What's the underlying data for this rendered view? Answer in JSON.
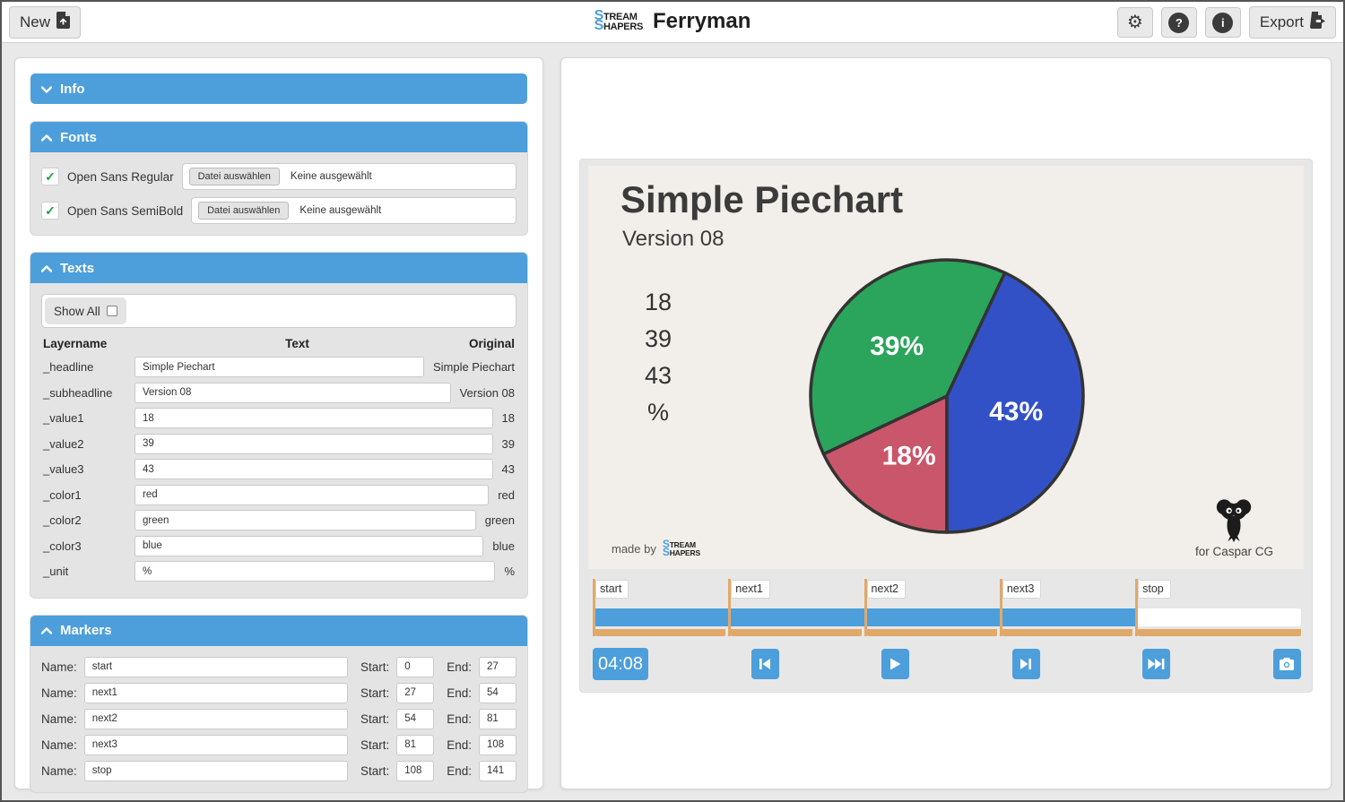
{
  "colors": {
    "accent_blue": "#4d9fdb",
    "timeline_orange": "#e0a96a",
    "preview_background": "#f2eee9",
    "section_body_gray": "#e4e4e4",
    "check_green": "#1e9e3e"
  },
  "header": {
    "new_label": "New",
    "app_title": "Ferryman",
    "logo": {
      "line1_s": "S",
      "line1_rest": "TREAM",
      "line2_s": "S",
      "line2_rest": "HAPERS"
    },
    "help_glyph": "?",
    "info_glyph": "i",
    "export_label": "Export"
  },
  "sections": {
    "info": {
      "title": "Info"
    },
    "fonts": {
      "title": "Fonts",
      "items": [
        {
          "name": "Open Sans Regular",
          "check": "✓",
          "button": "Datei auswählen",
          "status": "Keine ausgewählt"
        },
        {
          "name": "Open Sans SemiBold",
          "check": "✓",
          "button": "Datei auswählen",
          "status": "Keine ausgewählt"
        }
      ]
    },
    "texts": {
      "title": "Texts",
      "show_all_label": "Show All",
      "columns": {
        "layer": "Layername",
        "text": "Text",
        "original": "Original"
      },
      "rows": [
        {
          "layer": "_headline",
          "text": "Simple Piechart",
          "original": "Simple Piechart"
        },
        {
          "layer": "_subheadline",
          "text": "Version 08",
          "original": "Version 08"
        },
        {
          "layer": "_value1",
          "text": "18",
          "original": "18"
        },
        {
          "layer": "_value2",
          "text": "39",
          "original": "39"
        },
        {
          "layer": "_value3",
          "text": "43",
          "original": "43"
        },
        {
          "layer": "_color1",
          "text": "red",
          "original": "red"
        },
        {
          "layer": "_color2",
          "text": "green",
          "original": "green"
        },
        {
          "layer": "_color3",
          "text": "blue",
          "original": "blue"
        },
        {
          "layer": "_unit",
          "text": "%",
          "original": "%"
        }
      ]
    },
    "markers": {
      "title": "Markers",
      "name_label": "Name:",
      "start_label": "Start:",
      "end_label": "End:",
      "rows": [
        {
          "name": "start",
          "start": "0",
          "end": "27"
        },
        {
          "name": "next1",
          "start": "27",
          "end": "54"
        },
        {
          "name": "next2",
          "start": "54",
          "end": "81"
        },
        {
          "name": "next3",
          "start": "81",
          "end": "108"
        },
        {
          "name": "stop",
          "start": "108",
          "end": "141"
        }
      ]
    }
  },
  "preview": {
    "headline": "Simple Piechart",
    "subheadline": "Version 08",
    "side_values": [
      "18",
      "39",
      "43",
      "%"
    ],
    "made_by_label": "made by",
    "for_label": "for Caspar CG"
  },
  "chart_data": {
    "type": "pie",
    "title": "Simple Piechart",
    "subtitle": "Version 08",
    "unit": "%",
    "slices": [
      {
        "label": "18%",
        "value": 18,
        "color_name": "red",
        "color": "#c9566a"
      },
      {
        "label": "39%",
        "value": 39,
        "color_name": "green",
        "color": "#2ba45c"
      },
      {
        "label": "43%",
        "value": 43,
        "color_name": "blue",
        "color": "#3351c7"
      }
    ],
    "total": 100,
    "start_angle_deg": 180,
    "direction": "clockwise",
    "stroke_color": "#333333",
    "label_color": "#ffffff"
  },
  "timeline": {
    "total_frames": 141,
    "current_frame": 108,
    "time_display": "04:08",
    "markers": [
      {
        "name": "start",
        "start": 0,
        "end": 27
      },
      {
        "name": "next1",
        "start": 27,
        "end": 54
      },
      {
        "name": "next2",
        "start": 54,
        "end": 81
      },
      {
        "name": "next3",
        "start": 81,
        "end": 108
      },
      {
        "name": "stop",
        "start": 108,
        "end": 141
      }
    ]
  }
}
